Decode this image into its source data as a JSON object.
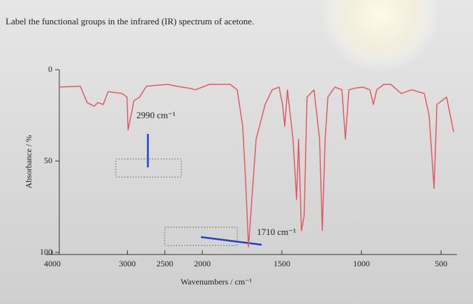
{
  "chart_data": {
    "type": "line",
    "title": "Label the functional groups in the infrared (IR) spectrum of acetone.",
    "x_label": "Wavenumbers / cm⁻¹",
    "y_label": "Absorbance / %",
    "xlim": [
      4000,
      400
    ],
    "xticks": [
      4000,
      3000,
      2500,
      2000,
      1500,
      1000,
      500
    ],
    "ylim": [
      0,
      100
    ],
    "yticks": [
      0,
      50,
      100
    ],
    "y_inverted": true,
    "series": [
      {
        "color": "#e05a66",
        "x": [
          3907,
          3628,
          3535,
          3442,
          3395,
          3321,
          3256,
          3070,
          3005,
          2990,
          2912,
          2837,
          2744,
          2465,
          2279,
          2186,
          2093,
          1956,
          1825,
          1781,
          1746,
          1728,
          1710,
          1684,
          1662,
          1605,
          1561,
          1518,
          1496,
          1482,
          1465,
          1430,
          1408,
          1395,
          1377,
          1360,
          1342,
          1298,
          1263,
          1246,
          1228,
          1211,
          1167,
          1123,
          1101,
          1079,
          1035,
          991,
          947,
          925,
          904,
          860,
          816,
          750,
          684,
          605,
          575,
          544,
          526,
          465,
          421
        ],
        "values": [
          9.5,
          9,
          18,
          20,
          18,
          19,
          12,
          13,
          15,
          33,
          17,
          15,
          9,
          8,
          9.5,
          10,
          11,
          8,
          8,
          11,
          31,
          61,
          97,
          65,
          38,
          19,
          11,
          9.5,
          19,
          31,
          11,
          38,
          71,
          38,
          88,
          80,
          15,
          11,
          38,
          88,
          38,
          15,
          9.5,
          11,
          38,
          11,
          10,
          9.5,
          11,
          19,
          11,
          8,
          8,
          13,
          11,
          13,
          25,
          65,
          19,
          15,
          34
        ]
      }
    ],
    "annotations": [
      {
        "text": "2990 cm⁻¹",
        "x": 2990,
        "y": 33
      },
      {
        "text": "1710 cm⁻¹",
        "x": 1710,
        "y": 97
      }
    ]
  }
}
